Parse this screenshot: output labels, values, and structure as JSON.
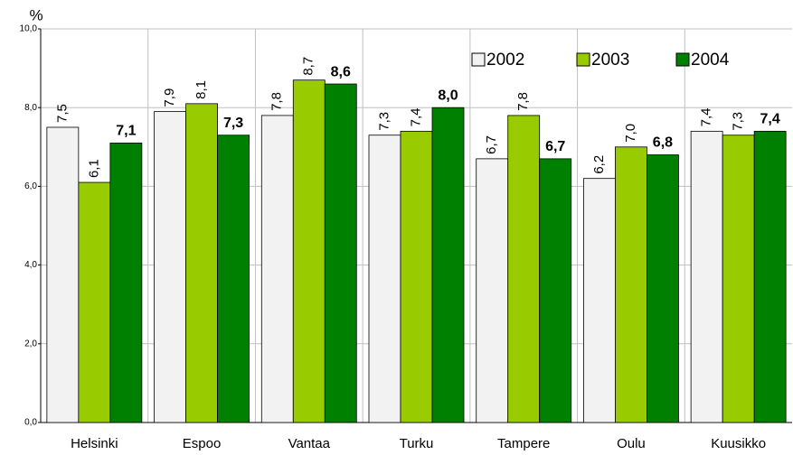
{
  "chart_data": {
    "type": "bar",
    "y_label": "%",
    "categories": [
      "Helsinki",
      "Espoo",
      "Vantaa",
      "Turku",
      "Tampere",
      "Oulu",
      "Kuusikko"
    ],
    "series": [
      {
        "name": "2002",
        "color": "#f2f2f2",
        "values": [
          7.5,
          7.9,
          7.8,
          7.3,
          6.7,
          6.2,
          7.4
        ],
        "value_labels": [
          "7,5",
          "7,9",
          "7,8",
          "7,3",
          "6,7",
          "6,2",
          "7,4"
        ]
      },
      {
        "name": "2003",
        "color": "#99cc00",
        "values": [
          6.1,
          8.1,
          8.7,
          7.4,
          7.8,
          7.0,
          7.3
        ],
        "value_labels": [
          "6,1",
          "8,1",
          "8,7",
          "7,4",
          "7,8",
          "7,0",
          "7,3"
        ]
      },
      {
        "name": "2004",
        "color": "#008000",
        "values": [
          7.1,
          7.3,
          8.6,
          8.0,
          6.7,
          6.8,
          7.4
        ],
        "value_labels": [
          "7,1",
          "7,3",
          "8,6",
          "8,0",
          "6,7",
          "6,8",
          "7,4"
        ]
      }
    ],
    "ylim": [
      0,
      10
    ],
    "yticks": [
      {
        "value": 0,
        "label": "0,0"
      },
      {
        "value": 2,
        "label": "2,0"
      },
      {
        "value": 4,
        "label": "4,0"
      },
      {
        "value": 6,
        "label": "6,0"
      },
      {
        "value": 8,
        "label": "8,0"
      },
      {
        "value": 10,
        "label": "10,0"
      }
    ],
    "grid": true,
    "legend": "top-right"
  }
}
